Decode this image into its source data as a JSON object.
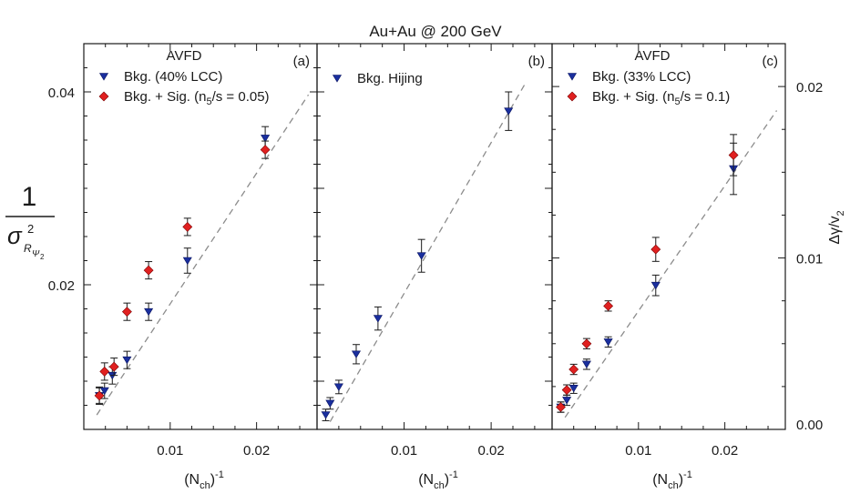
{
  "title": "Au+Au @ 200 GeV",
  "colors": {
    "bkg": "#1a2f9e",
    "sig": "#e02020",
    "fit": "#8c8c8c",
    "axis": "#1a1a1a",
    "errorbar": "#1a1a1a"
  },
  "y_left_label": {
    "numerator": "1",
    "sigma": "σ",
    "sub_r": "R",
    "sub_psi": "Ψ",
    "sub_2": "2",
    "sup_2": "2"
  },
  "y_right_label": "Δγ/v",
  "y_right_label_sub": "2",
  "x_label_main": "(N",
  "x_label_sub": "ch",
  "x_label_close": ")",
  "x_label_sup": "-1",
  "chart_data": [
    {
      "type": "scatter",
      "panel_tag": "(a)",
      "header": "AVFD",
      "xlim": [
        0,
        0.027
      ],
      "ylim": [
        0.005,
        0.045
      ],
      "x_ticks": [
        0.01,
        0.02
      ],
      "x_tick_labels": [
        "0.01",
        "0.02"
      ],
      "y_ticks": [
        0.02,
        0.04
      ],
      "y_tick_labels": [
        "0.02",
        "0.04"
      ],
      "fit_line": {
        "x": [
          0.0015,
          0.026
        ],
        "y": [
          0.0065,
          0.0397
        ]
      },
      "series": [
        {
          "name": "Bkg. (40% LCC)",
          "marker": "triangle-down",
          "x": [
            0.0018,
            0.0024,
            0.0033,
            0.005,
            0.0075,
            0.012,
            0.021
          ],
          "y": [
            0.0085,
            0.009,
            0.0106,
            0.0122,
            0.0172,
            0.0225,
            0.0352
          ],
          "err": [
            0.0008,
            0.0008,
            0.0009,
            0.0009,
            0.0009,
            0.0013,
            0.0012
          ]
        },
        {
          "name": "Bkg. + Sig. (n",
          "name_sub": "5",
          "name_tail": "/s = 0.05)",
          "marker": "diamond",
          "x": [
            0.0018,
            0.0024,
            0.0035,
            0.005,
            0.0075,
            0.012,
            0.021
          ],
          "y": [
            0.0085,
            0.011,
            0.0115,
            0.0172,
            0.0215,
            0.026,
            0.034
          ],
          "err": [
            0.0009,
            0.0009,
            0.0009,
            0.0009,
            0.0009,
            0.0009,
            0.0009
          ]
        }
      ]
    },
    {
      "type": "scatter",
      "panel_tag": "(b)",
      "header": "",
      "xlim": [
        0,
        0.027
      ],
      "ylim": [
        0.005,
        0.045
      ],
      "x_ticks": [
        0.01,
        0.02
      ],
      "x_tick_labels": [
        "0.01",
        "0.02"
      ],
      "fit_line": {
        "x": [
          0.0015,
          0.024
        ],
        "y": [
          0.0058,
          0.041
        ]
      },
      "series": [
        {
          "name": "Bkg. Hijing",
          "marker": "triangle-down",
          "x": [
            0.001,
            0.0015,
            0.0025,
            0.0045,
            0.007,
            0.012,
            0.022
          ],
          "y": [
            0.0065,
            0.0077,
            0.0094,
            0.0128,
            0.0165,
            0.023,
            0.038
          ],
          "err": [
            0.0006,
            0.0006,
            0.0007,
            0.001,
            0.0012,
            0.0017,
            0.002
          ]
        }
      ]
    },
    {
      "type": "scatter",
      "panel_tag": "(c)",
      "header": "AVFD",
      "xlim": [
        0,
        0.027
      ],
      "ylim": [
        0.0,
        0.0225
      ],
      "x_ticks": [
        0.01,
        0.02
      ],
      "x_tick_labels": [
        "0.01",
        "0.02"
      ],
      "y_ticks": [
        0.0,
        0.01,
        0.02
      ],
      "y_tick_labels": [
        "0.00",
        "0.01",
        "0.02"
      ],
      "fit_line": {
        "x": [
          0.0015,
          0.026
        ],
        "y": [
          0.0007,
          0.0186
        ]
      },
      "series": [
        {
          "name": "Bkg. (33% LCC)",
          "marker": "triangle-down",
          "x": [
            0.001,
            0.0017,
            0.0025,
            0.004,
            0.0065,
            0.012,
            0.021
          ],
          "y": [
            0.0013,
            0.0017,
            0.0024,
            0.0038,
            0.0051,
            0.0084,
            0.0152
          ],
          "err": [
            0.0003,
            0.0003,
            0.0003,
            0.0003,
            0.0003,
            0.0006,
            0.0015
          ]
        },
        {
          "name": "Bkg. + Sig. (n",
          "name_sub": "5",
          "name_tail": "/s = 0.1)",
          "marker": "diamond",
          "x": [
            0.001,
            0.0017,
            0.0025,
            0.004,
            0.0065,
            0.012,
            0.021
          ],
          "y": [
            0.0013,
            0.0023,
            0.0035,
            0.005,
            0.0072,
            0.0105,
            0.016
          ],
          "err": [
            0.0003,
            0.0003,
            0.0003,
            0.0003,
            0.0003,
            0.0007,
            0.0012
          ]
        }
      ]
    }
  ]
}
